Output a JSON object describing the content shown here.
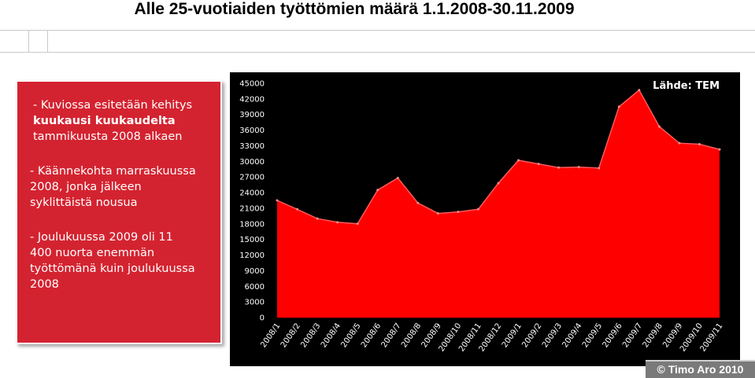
{
  "page": {
    "title": "Alle 25-vuotiaiden työttömien määrä 1.1.2008-30.11.2009"
  },
  "panel": {
    "p1_prefix": "- Kuviossa esitetään kehitys",
    "p1_bold": "kuukausi kuukaudelta",
    "p1_suffix": "tammikuusta 2008 alkaen",
    "p2_line1": "- Käännekohta marraskuussa",
    "p2_line2": "2008, jonka jälkeen",
    "p2_line3": "syklittäistä nousua",
    "p3_line1": "- Joulukuussa 2009 oli 11",
    "p3_line2": "400 nuorta enemmän",
    "p3_line3": "työttömänä kuin joulukuussa",
    "p3_line4": "2008"
  },
  "watermark": "© Timo Aro 2010",
  "chart_data": {
    "type": "area",
    "source_label": "Lähde: TEM",
    "x": [
      "2008/1",
      "2008/2",
      "2008/3",
      "2008/4",
      "2008/5",
      "2008/6",
      "2008/7",
      "2008/8",
      "2008/9",
      "2008/10",
      "2008/11",
      "2008/12",
      "2009/1",
      "2009/2",
      "2009/3",
      "2009/4",
      "2009/5",
      "2009/6",
      "2009/7",
      "2009/8",
      "2009/9",
      "2009/10",
      "2009/11"
    ],
    "values": [
      22500,
      20800,
      19000,
      18300,
      18000,
      24500,
      26800,
      22000,
      20000,
      20300,
      20800,
      25800,
      30200,
      29500,
      28800,
      28900,
      28700,
      40500,
      43700,
      36700,
      33500,
      33300,
      32300
    ],
    "ylim": [
      0,
      45000
    ],
    "yticks": [
      "0",
      "3000",
      "6000",
      "9000",
      "12000",
      "15000",
      "18000",
      "21000",
      "24000",
      "27000",
      "30000",
      "33000",
      "36000",
      "39000",
      "42000",
      "45000"
    ],
    "color": "#ff0000",
    "background": "#000000",
    "grid": false
  }
}
